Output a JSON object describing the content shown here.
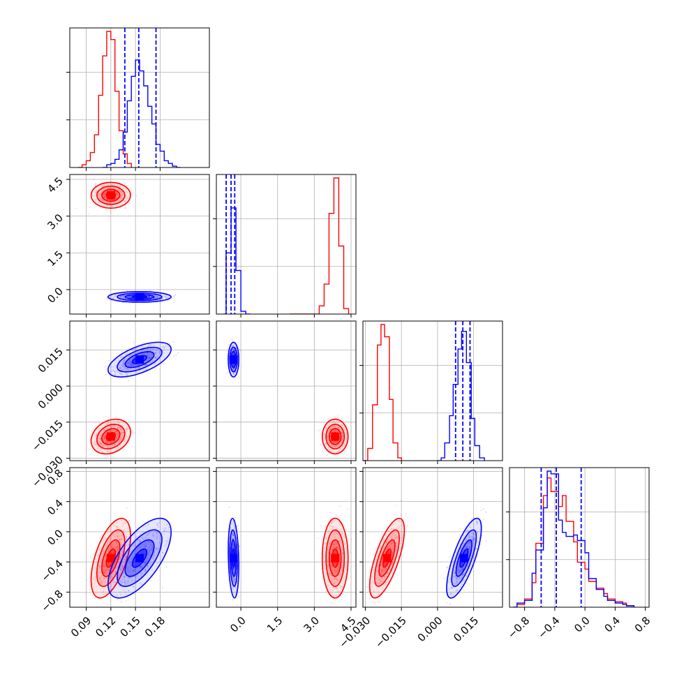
{
  "chart_data": {
    "type": "corner",
    "series": [
      {
        "name": "",
        "color": "#ff0000"
      },
      {
        "name": "",
        "color": "#0000ff"
      }
    ],
    "parameters": [
      {
        "range": [
          0.07,
          0.24
        ],
        "ticks": [
          0.09,
          0.12,
          0.15,
          0.18
        ],
        "tick_labels": [
          "0.09",
          "0.12",
          "0.15",
          "0.18"
        ]
      },
      {
        "range": [
          -1.0,
          4.7
        ],
        "ticks": [
          0.0,
          1.5,
          3.0,
          4.5
        ],
        "tick_labels": [
          "0.0",
          "1.5",
          "3.0",
          "4.5"
        ]
      },
      {
        "range": [
          -0.031,
          0.027
        ],
        "ticks": [
          -0.03,
          -0.015,
          0.0,
          0.015
        ],
        "tick_labels": [
          "−0.030",
          "−0.015",
          "0.000",
          "0.015"
        ]
      },
      {
        "range": [
          -1.0,
          0.85
        ],
        "ticks": [
          -0.8,
          -0.4,
          0.0,
          0.4,
          0.8
        ],
        "tick_labels": [
          "−0.8",
          "−0.4",
          "0.0",
          "0.4",
          "0.8"
        ]
      }
    ],
    "stats": {
      "red": {
        "mean": [
          0.12,
          3.85,
          -0.021,
          -0.35
        ],
        "sd": [
          0.01,
          0.22,
          0.003,
          0.22
        ],
        "corr": {
          "0-1": 0.0,
          "0-2": 0.25,
          "0-3": 0.55,
          "1-2": 0.0,
          "1-3": 0.0,
          "2-3": 0.7
        }
      },
      "blue": {
        "mean": [
          0.155,
          -0.3,
          0.011,
          -0.35
        ],
        "sd": [
          0.016,
          0.09,
          0.003,
          0.22
        ],
        "corr": {
          "0-1": 0.0,
          "0-2": 0.6,
          "0-3": 0.65,
          "1-2": 0.0,
          "1-3": -0.2,
          "2-3": 0.75
        }
      }
    },
    "marginal_histograms": [
      {
        "red": [
          [
            0.08,
            0.0
          ],
          [
            0.085,
            0.02
          ],
          [
            0.09,
            0.05
          ],
          [
            0.095,
            0.11
          ],
          [
            0.1,
            0.24
          ],
          [
            0.105,
            0.53
          ],
          [
            0.11,
            0.82
          ],
          [
            0.115,
            1.0
          ],
          [
            0.12,
            0.94
          ],
          [
            0.125,
            0.56
          ],
          [
            0.13,
            0.27
          ],
          [
            0.135,
            0.1
          ],
          [
            0.14,
            0.03
          ],
          [
            0.145,
            0.0
          ]
        ],
        "blue": [
          [
            0.11,
            0.0
          ],
          [
            0.115,
            0.02
          ],
          [
            0.12,
            0.03
          ],
          [
            0.125,
            0.06
          ],
          [
            0.13,
            0.13
          ],
          [
            0.135,
            0.26
          ],
          [
            0.14,
            0.49
          ],
          [
            0.145,
            0.67
          ],
          [
            0.15,
            0.79
          ],
          [
            0.155,
            0.71
          ],
          [
            0.16,
            0.6
          ],
          [
            0.165,
            0.45
          ],
          [
            0.17,
            0.32
          ],
          [
            0.175,
            0.17
          ],
          [
            0.18,
            0.12
          ],
          [
            0.185,
            0.05
          ],
          [
            0.19,
            0.03
          ],
          [
            0.195,
            0.01
          ],
          [
            0.2,
            0.0
          ],
          [
            0.205,
            0.0
          ]
        ]
      },
      {
        "red": [
          [
            2.0,
            0.0
          ],
          [
            2.4,
            0.0
          ],
          [
            2.8,
            0.0
          ],
          [
            3.2,
            0.06
          ],
          [
            3.4,
            0.22
          ],
          [
            3.6,
            0.74
          ],
          [
            3.8,
            1.0
          ],
          [
            4.0,
            0.5
          ],
          [
            4.2,
            0.04
          ],
          [
            4.4,
            0.0
          ]
        ],
        "blue": [
          [
            -0.7,
            0.0
          ],
          [
            -0.6,
            0.45
          ],
          [
            -0.4,
            0.78
          ],
          [
            -0.2,
            0.32
          ],
          [
            0.0,
            0.02
          ],
          [
            0.2,
            0.0
          ],
          [
            0.4,
            0.0
          ]
        ]
      },
      {
        "red": [
          [
            -0.031,
            0.0
          ],
          [
            -0.029,
            0.09
          ],
          [
            -0.027,
            0.41
          ],
          [
            -0.025,
            0.85
          ],
          [
            -0.0235,
            1.0
          ],
          [
            -0.022,
            0.91
          ],
          [
            -0.02,
            0.45
          ],
          [
            -0.0185,
            0.13
          ],
          [
            -0.0165,
            0.02
          ],
          [
            -0.015,
            0.0
          ]
        ],
        "blue": [
          [
            0.0,
            0.0
          ],
          [
            0.0015,
            0.02
          ],
          [
            0.003,
            0.13
          ],
          [
            0.005,
            0.33
          ],
          [
            0.0065,
            0.56
          ],
          [
            0.0085,
            0.82
          ],
          [
            0.01,
            0.95
          ],
          [
            0.012,
            0.72
          ],
          [
            0.014,
            0.31
          ],
          [
            0.0155,
            0.11
          ],
          [
            0.0175,
            0.02
          ],
          [
            0.0195,
            0.0
          ]
        ]
      },
      {
        "red": [
          [
            -0.95,
            0.0
          ],
          [
            -0.9,
            0.02
          ],
          [
            -0.8,
            0.06
          ],
          [
            -0.7,
            0.18
          ],
          [
            -0.65,
            0.47
          ],
          [
            -0.55,
            0.82
          ],
          [
            -0.5,
            0.95
          ],
          [
            -0.45,
            0.85
          ],
          [
            -0.35,
            0.74
          ],
          [
            -0.3,
            0.82
          ],
          [
            -0.25,
            0.63
          ],
          [
            -0.15,
            0.48
          ],
          [
            -0.1,
            0.33
          ],
          [
            0.0,
            0.28
          ],
          [
            0.05,
            0.19
          ],
          [
            0.15,
            0.14
          ],
          [
            0.25,
            0.1
          ],
          [
            0.3,
            0.06
          ],
          [
            0.4,
            0.04
          ],
          [
            0.5,
            0.03
          ],
          [
            0.55,
            0.01
          ],
          [
            0.65,
            0.0
          ]
        ],
        "blue": [
          [
            -0.95,
            0.0
          ],
          [
            -0.9,
            0.03
          ],
          [
            -0.8,
            0.05
          ],
          [
            -0.7,
            0.25
          ],
          [
            -0.65,
            0.42
          ],
          [
            -0.55,
            0.73
          ],
          [
            -0.5,
            1.0
          ],
          [
            -0.45,
            0.98
          ],
          [
            -0.35,
            0.64
          ],
          [
            -0.3,
            0.55
          ],
          [
            -0.25,
            0.52
          ],
          [
            -0.15,
            0.53
          ],
          [
            -0.1,
            0.49
          ],
          [
            0.0,
            0.4
          ],
          [
            0.05,
            0.21
          ],
          [
            0.15,
            0.13
          ],
          [
            0.25,
            0.08
          ],
          [
            0.3,
            0.05
          ],
          [
            0.4,
            0.03
          ],
          [
            0.5,
            0.02
          ],
          [
            0.55,
            0.01
          ],
          [
            0.65,
            0.0
          ]
        ]
      }
    ],
    "quantile_lines_blue": [
      [
        0.137,
        0.154,
        0.175
      ],
      [
        -0.6,
        -0.4,
        -0.25
      ],
      [
        0.0075,
        0.0105,
        0.0135
      ],
      [
        -0.58,
        -0.38,
        -0.05
      ]
    ],
    "grid": true
  }
}
